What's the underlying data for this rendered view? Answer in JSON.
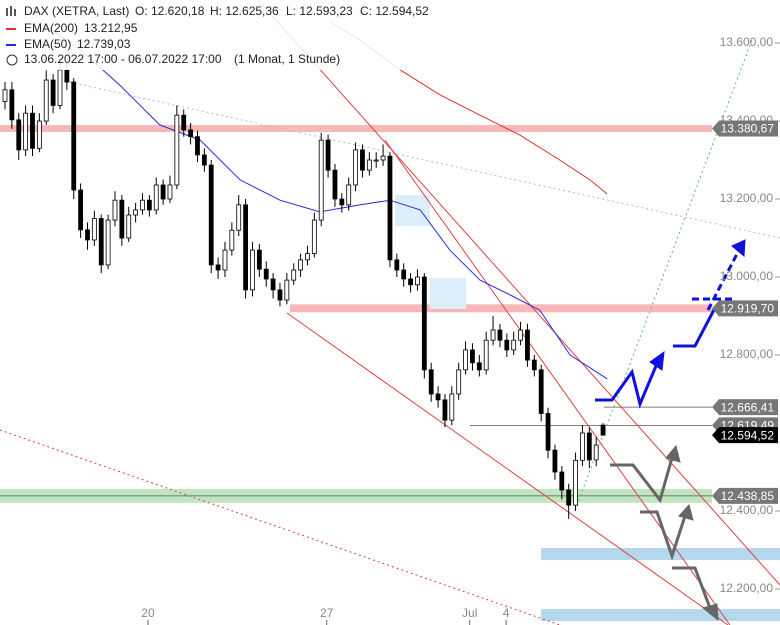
{
  "chart_data": {
    "type": "candlestick",
    "header": {
      "symbol": "DAX (XETRA, Last)",
      "open": "O: 12.620,18",
      "high": "H: 12.625,36",
      "low": "L: 12.593,23",
      "close": "C: 12.594,52",
      "range": "13.06.2022 17:00 - 06.07.2022 17:00",
      "period": "(1 Monat, 1 Stunde)"
    },
    "open": [
      13450,
      13480,
      13403,
      13326,
      13420,
      13330,
      13400,
      13505,
      13440,
      13531,
      13500,
      13223,
      13121,
      13095,
      13150,
      13031,
      13146,
      13197,
      13100,
      13159,
      13172,
      13197,
      13172,
      13236,
      13200,
      13236,
      13415,
      13377,
      13360,
      13313,
      13287,
      13031,
      13018,
      13069,
      13120,
      13185,
      12967,
      13069,
      13020,
      12995,
      12967,
      12941,
      12992,
      13018,
      13044,
      13060,
      13146,
      13351,
      13274,
      13200,
      13185,
      13236,
      13326,
      13274,
      13300,
      13300,
      13310,
      13044,
      13018,
      12995,
      12980,
      13000,
      12762,
      12700,
      12685,
      12633,
      12700,
      12762,
      12813,
      12780,
      12762,
      12838,
      12864,
      12838,
      12813,
      12838,
      12864,
      12787,
      12762,
      12650,
      12556,
      12500,
      12454,
      12415,
      12530,
      12600,
      12531,
      12620.18
    ],
    "high": [
      13500,
      13500,
      13420,
      13440,
      13440,
      13420,
      13530,
      13520,
      13560,
      13550,
      13510,
      13240,
      13140,
      13170,
      13160,
      13160,
      13220,
      13210,
      13180,
      13190,
      13215,
      13210,
      13255,
      13250,
      13260,
      13440,
      13430,
      13395,
      13375,
      13330,
      13300,
      13050,
      13090,
      13140,
      13210,
      13200,
      13090,
      13085,
      13040,
      13010,
      12985,
      13010,
      13035,
      13060,
      13080,
      13165,
      13370,
      13365,
      13290,
      13215,
      13255,
      13345,
      13340,
      13320,
      13320,
      13340,
      13320,
      13060,
      13035,
      13010,
      13020,
      13010,
      12780,
      12720,
      12700,
      12720,
      12780,
      12835,
      12830,
      12800,
      12860,
      12900,
      12880,
      12855,
      12860,
      12885,
      12880,
      12800,
      12775,
      12665,
      12570,
      12515,
      12470,
      12550,
      12620,
      12615,
      12590,
      12625.36
    ],
    "low": [
      13430,
      13380,
      13300,
      13310,
      13310,
      13320,
      13390,
      13420,
      13430,
      13480,
      13200,
      13100,
      13070,
      13080,
      13010,
      13020,
      13130,
      13080,
      13090,
      13140,
      13160,
      13155,
      13160,
      13185,
      13190,
      13225,
      13360,
      13340,
      13295,
      13270,
      13010,
      12995,
      13000,
      13055,
      13105,
      12945,
      12950,
      13000,
      12975,
      12945,
      12925,
      12930,
      12980,
      13000,
      13030,
      13050,
      13130,
      13255,
      13180,
      13165,
      13170,
      13220,
      13255,
      13260,
      13280,
      13285,
      13025,
      13000,
      12975,
      12960,
      12965,
      12740,
      12680,
      12665,
      12615,
      12620,
      12685,
      12750,
      12760,
      12745,
      12750,
      12825,
      12820,
      12795,
      12800,
      12825,
      12770,
      12745,
      12630,
      12535,
      12480,
      12430,
      12380,
      12400,
      12515,
      12510,
      12515,
      12593.23
    ],
    "close": [
      13480,
      13403,
      13326,
      13420,
      13330,
      13400,
      13505,
      13440,
      13531,
      13500,
      13223,
      13121,
      13095,
      13150,
      13031,
      13146,
      13197,
      13100,
      13159,
      13172,
      13197,
      13172,
      13236,
      13200,
      13236,
      13415,
      13377,
      13360,
      13313,
      13287,
      13031,
      13018,
      13069,
      13120,
      13185,
      12967,
      13069,
      13020,
      12995,
      12967,
      12941,
      12992,
      13018,
      13044,
      13060,
      13146,
      13351,
      13274,
      13200,
      13185,
      13236,
      13326,
      13274,
      13300,
      13300,
      13310,
      13044,
      13018,
      12995,
      12980,
      13000,
      12762,
      12700,
      12685,
      12633,
      12700,
      12762,
      12813,
      12780,
      12762,
      12838,
      12864,
      12838,
      12813,
      12838,
      12864,
      12787,
      12762,
      12650,
      12556,
      12500,
      12454,
      12415,
      12530,
      12600,
      12531,
      12569,
      12594.52
    ],
    "up_color": "#ffffff",
    "down_color": "#000000",
    "series": [
      {
        "name": "EMA(200)",
        "color": "#e03030",
        "last_label": "13.212,95",
        "x": [
          47.3,
          51.6,
          57.5,
          63.3,
          69.1,
          74.9,
          80.7,
          85.1,
          87.6
        ],
        "values": [
          13654,
          13608,
          13531,
          13467,
          13415,
          13364,
          13300,
          13249,
          13212.95
        ]
      },
      {
        "name": "EMA(50)",
        "color": "#2b2bdd",
        "last_label": "12.739,03",
        "x": [
          5.1,
          11,
          16.7,
          22.5,
          28.4,
          34.2,
          40,
          45.8,
          51.6,
          56,
          60.4,
          64.7,
          69.1,
          73.5,
          77.8,
          82.2,
          87.6
        ],
        "values": [
          13654,
          13582,
          13492,
          13390,
          13351,
          13249,
          13197,
          13167,
          13185,
          13197,
          13172,
          13069,
          12992,
          12954,
          12915,
          12800,
          12739.03
        ]
      }
    ],
    "xlim": [
      -0.727,
      112.74
    ],
    "xticks": [
      {
        "value": 20.8,
        "label": "20"
      },
      {
        "value": 46.8,
        "label": "27"
      },
      {
        "value": 67.6,
        "label": "Jul"
      },
      {
        "value": 72.9,
        "label": "4"
      }
    ],
    "ylim": [
      12107.7,
      13710.3
    ],
    "yticks": [
      {
        "value": 12200,
        "label": "12.200,00"
      },
      {
        "value": 12400,
        "label": "12.400,00"
      },
      {
        "value": 12800,
        "label": "12.800,00"
      },
      {
        "value": 13000,
        "label": "13.000,00"
      },
      {
        "value": 13200,
        "label": "13.200,00"
      },
      {
        "value": 13400,
        "label": "13.400,00"
      },
      {
        "value": 13600,
        "label": "13.600,00"
      }
    ],
    "price_tags": [
      {
        "value": 13380.67,
        "label": "13.380,67"
      },
      {
        "value": 12919.7,
        "label": "12.919,70"
      },
      {
        "value": 12666.41,
        "label": "12.666,41"
      },
      {
        "value": 12619.49,
        "label": "12.619,49"
      },
      {
        "value": 12438.85,
        "label": "12.438,85"
      },
      {
        "value": 12594.52,
        "label": "12.594,52"
      }
    ]
  }
}
